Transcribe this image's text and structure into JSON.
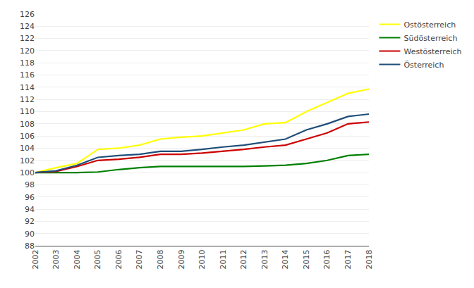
{
  "chart_data": {
    "type": "line",
    "x": [
      2002,
      2003,
      2004,
      2005,
      2006,
      2007,
      2008,
      2009,
      2010,
      2011,
      2012,
      2013,
      2014,
      2015,
      2016,
      2017,
      2018
    ],
    "series": [
      {
        "name": "Ostösterreich",
        "color": "#ffff00",
        "values": [
          100.0,
          100.8,
          101.5,
          103.8,
          104.0,
          104.5,
          105.5,
          105.8,
          106.0,
          106.5,
          107.0,
          108.0,
          108.2,
          110.0,
          111.5,
          113.0,
          113.7
        ]
      },
      {
        "name": "Südösterreich",
        "color": "#008000",
        "values": [
          100.0,
          100.0,
          100.0,
          100.1,
          100.5,
          100.8,
          101.0,
          101.0,
          101.0,
          101.0,
          101.0,
          101.1,
          101.2,
          101.5,
          102.0,
          102.8,
          103.0
        ]
      },
      {
        "name": "Westösterreich",
        "color": "#cc0000",
        "values": [
          100.0,
          100.2,
          101.0,
          102.0,
          102.2,
          102.5,
          103.0,
          103.0,
          103.2,
          103.5,
          103.8,
          104.2,
          104.5,
          105.5,
          106.5,
          108.0,
          108.3
        ]
      },
      {
        "name": "Österreich",
        "color": "#1f4e79",
        "values": [
          100.0,
          100.3,
          101.2,
          102.5,
          102.8,
          103.0,
          103.5,
          103.5,
          103.8,
          104.2,
          104.5,
          105.0,
          105.5,
          107.0,
          108.0,
          109.2,
          109.6
        ]
      }
    ],
    "xlim": [
      2002,
      2018
    ],
    "xticks": [
      2002,
      2003,
      2004,
      2005,
      2006,
      2007,
      2008,
      2009,
      2010,
      2011,
      2012,
      2013,
      2014,
      2015,
      2016,
      2017,
      2018
    ],
    "ylim": [
      88,
      126
    ],
    "yticks": [
      88,
      90,
      92,
      94,
      96,
      98,
      100,
      102,
      104,
      106,
      108,
      110,
      112,
      114,
      116,
      118,
      120,
      122,
      124,
      126
    ],
    "grid": true,
    "legend": "right"
  }
}
